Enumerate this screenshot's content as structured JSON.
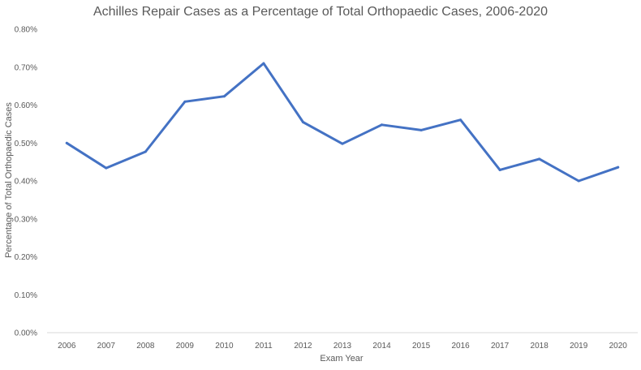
{
  "chart_data": {
    "type": "line",
    "title": "Achilles Repair Cases as a Percentage of Total Orthopaedic Cases, 2006-2020",
    "xlabel": "Exam Year",
    "ylabel": "Percentage of Total Orthopaedic Cases",
    "categories": [
      "2006",
      "2007",
      "2008",
      "2009",
      "2010",
      "2011",
      "2012",
      "2013",
      "2014",
      "2015",
      "2016",
      "2017",
      "2018",
      "2019",
      "2020"
    ],
    "series": [
      {
        "values": [
          0.5,
          0.434,
          0.477,
          0.609,
          0.623,
          0.71,
          0.555,
          0.498,
          0.548,
          0.534,
          0.561,
          0.429,
          0.458,
          0.4,
          0.436
        ],
        "color": "#4472c4"
      }
    ],
    "ylim": [
      0,
      0.8
    ],
    "yticks": [
      0,
      0.1,
      0.2,
      0.3,
      0.4,
      0.5,
      0.6,
      0.7,
      0.8
    ],
    "ytick_labels": [
      "0.00%",
      "0.10%",
      "0.20%",
      "0.30%",
      "0.40%",
      "0.50%",
      "0.60%",
      "0.70%",
      "0.80%"
    ],
    "grid": false,
    "legend": "none"
  }
}
